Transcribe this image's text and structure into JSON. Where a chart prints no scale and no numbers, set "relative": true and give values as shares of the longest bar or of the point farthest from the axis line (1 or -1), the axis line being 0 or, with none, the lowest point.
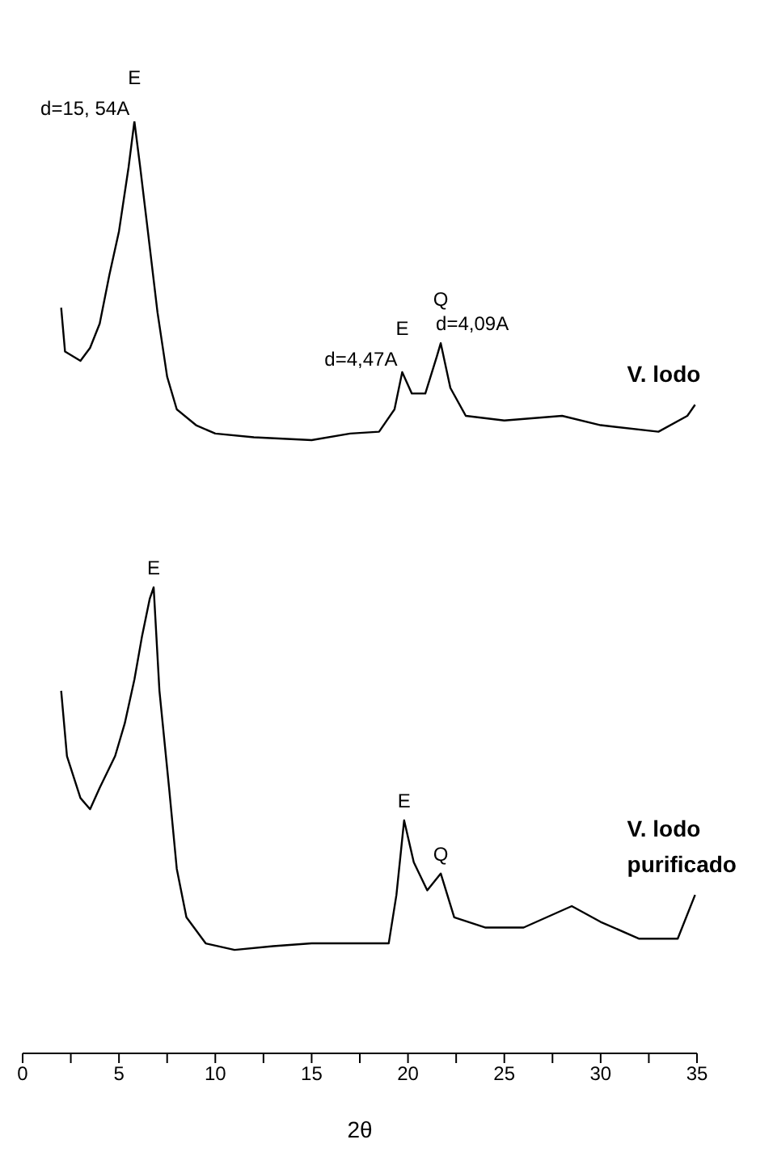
{
  "chart_data": {
    "type": "line",
    "relative": true,
    "xlabel": "2θ",
    "xlim": [
      0,
      35
    ],
    "xticks": [
      0,
      {
        "value": 2.5,
        "label": null
      },
      5,
      {
        "value": 7.5,
        "label": null
      },
      10,
      {
        "value": 12.5,
        "label": null
      },
      15,
      {
        "value": 17.5,
        "label": null
      },
      20,
      {
        "value": 22.5,
        "label": null
      },
      25,
      {
        "value": 27.5,
        "label": null
      },
      30,
      {
        "value": 32.5,
        "label": null
      },
      35
    ],
    "series": [
      {
        "name": "V. lodo",
        "color": "#000000",
        "x": [
          2.0,
          2.2,
          3,
          3.5,
          4,
          4.5,
          5,
          5.5,
          5.8,
          6.1,
          6.5,
          7,
          7.5,
          8,
          9,
          10,
          12,
          15,
          17,
          18.5,
          19.3,
          19.7,
          20.2,
          20.9,
          21.5,
          21.7,
          22.2,
          23,
          25,
          28,
          30,
          33,
          34.5,
          34.9
        ],
        "values": [
          0.8,
          0.753,
          0.743,
          0.757,
          0.783,
          0.835,
          0.882,
          0.951,
          1,
          0.951,
          0.882,
          0.795,
          0.726,
          0.691,
          0.674,
          0.665,
          0.661,
          0.658,
          0.665,
          0.667,
          0.691,
          0.731,
          0.708,
          0.708,
          0.748,
          0.762,
          0.714,
          0.684,
          0.679,
          0.684,
          0.674,
          0.667,
          0.684,
          0.696
        ]
      },
      {
        "name": "V. lodo purificado",
        "color": "#000000",
        "x": [
          2.0,
          2.3,
          3,
          3.5,
          4,
          4.8,
          5.3,
          5.8,
          6.2,
          6.6,
          6.8,
          7.1,
          7.6,
          8,
          8.5,
          9.5,
          11,
          13,
          15,
          18,
          19,
          19.4,
          19.8,
          20.3,
          21,
          21.7,
          22.4,
          24,
          26,
          28.5,
          30,
          32,
          34,
          34.9
        ],
        "values": [
          0.389,
          0.319,
          0.274,
          0.262,
          0.285,
          0.319,
          0.354,
          0.401,
          0.448,
          0.488,
          0.5,
          0.389,
          0.285,
          0.198,
          0.146,
          0.118,
          0.111,
          0.115,
          0.118,
          0.118,
          0.118,
          0.17,
          0.25,
          0.205,
          0.175,
          0.193,
          0.146,
          0.135,
          0.135,
          0.158,
          0.141,
          0.123,
          0.123,
          0.17
        ]
      }
    ],
    "annotations": [
      {
        "text": "E",
        "x": 5.8,
        "y": 1
      },
      {
        "text": "d=15, 54A",
        "x": 5.8,
        "y": 1
      },
      {
        "text": "E",
        "x": 19.7,
        "y": 0.731
      },
      {
        "text": "d=4,47A",
        "x": 19.7,
        "y": 0.731
      },
      {
        "text": "Q",
        "x": 21.7,
        "y": 0.762
      },
      {
        "text": "d=4,09A",
        "x": 21.7,
        "y": 0.762
      },
      {
        "text": "E",
        "x": 6.8,
        "y": 0.5
      },
      {
        "text": "E",
        "x": 19.8,
        "y": 0.25
      },
      {
        "text": "Q",
        "x": 21.7,
        "y": 0.193
      }
    ]
  }
}
